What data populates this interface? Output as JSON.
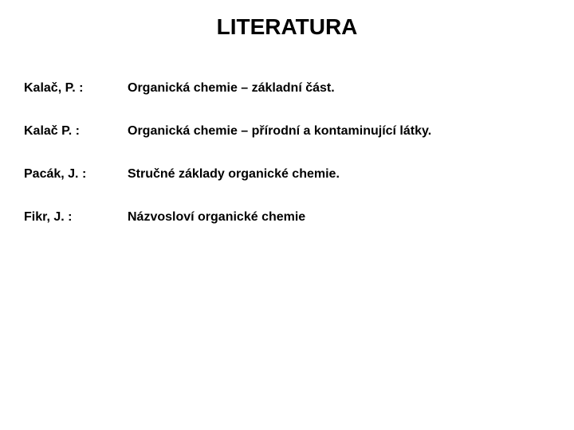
{
  "title": "LITERATURA",
  "references": [
    {
      "author": "Kalač, P. :",
      "work": "Organická chemie – základní část."
    },
    {
      "author": "Kalač P. :",
      "work": "Organická chemie – přírodní a kontaminující látky."
    },
    {
      "author": "Pacák, J. :",
      "work": "Stručné základy organické chemie."
    },
    {
      "author": "Fikr, J. :",
      "work": "Názvosloví organické chemie"
    }
  ],
  "style": {
    "background_color": "#ffffff",
    "text_color": "#000000",
    "title_fontsize": 28,
    "body_fontsize": 16,
    "font_weight": "bold",
    "author_col_width": 130,
    "row_spacing": 36
  }
}
